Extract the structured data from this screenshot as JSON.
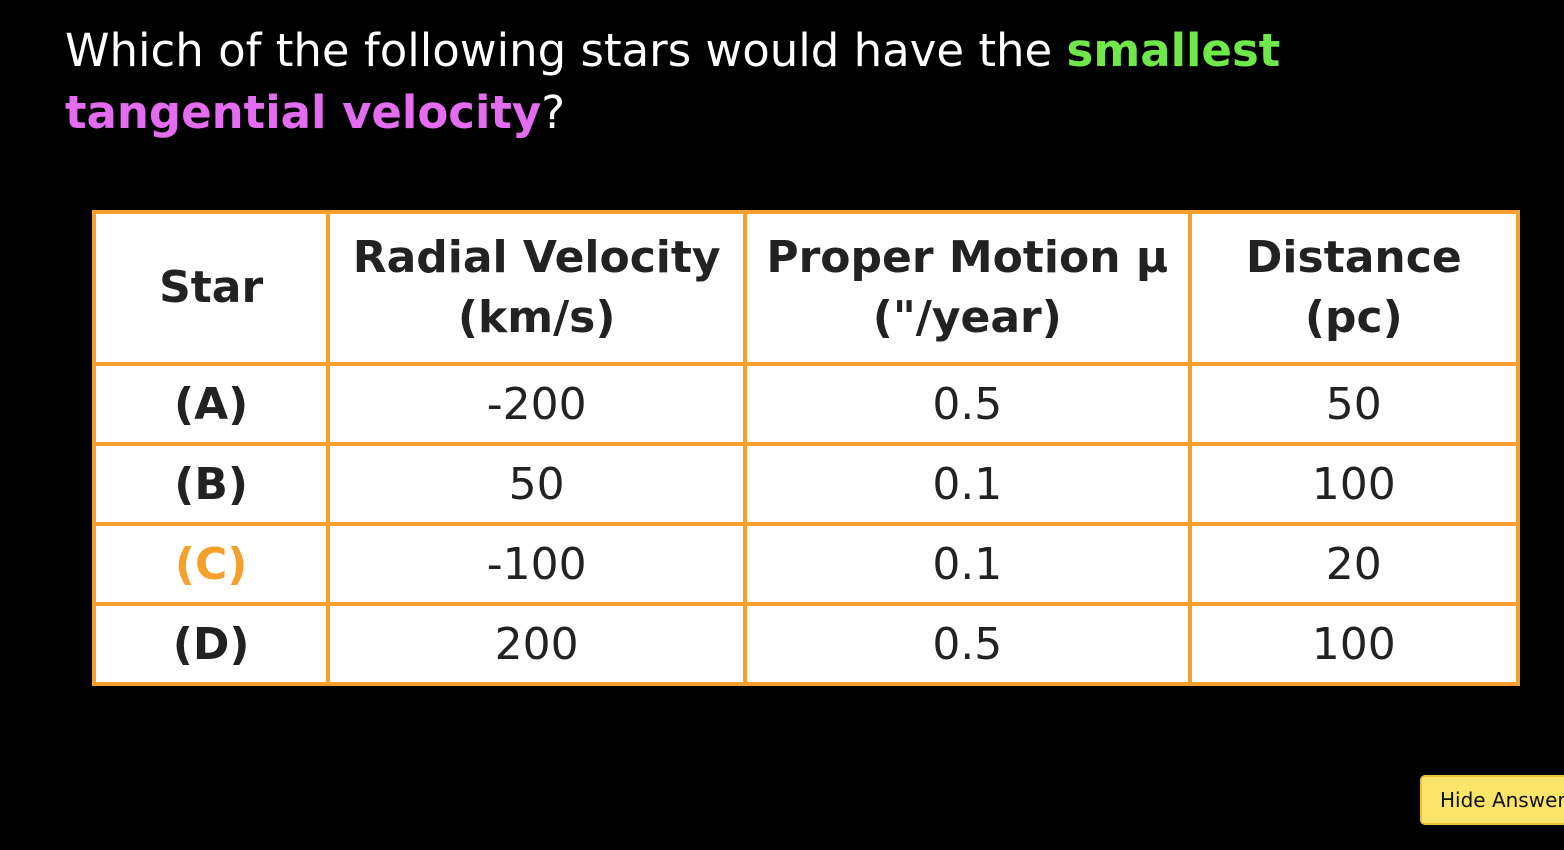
{
  "question": {
    "segments": [
      {
        "text": "Which of the following stars would have the ",
        "color": "#ffffff"
      },
      {
        "text": "smallest",
        "color": "#6fe84a"
      },
      {
        "text": " ",
        "color": "#ffffff"
      },
      {
        "text": "tangential velocity",
        "color": "#e46cf0"
      },
      {
        "text": "?",
        "color": "#ffffff"
      }
    ]
  },
  "table": {
    "header": [
      [
        "Star"
      ],
      [
        "Radial Velocity",
        "(km/s)"
      ],
      [
        "Proper Motion μ",
        "(\"/year)"
      ],
      [
        "Distance",
        "(pc)"
      ]
    ],
    "rows": [
      {
        "star": "(A)",
        "color": "#222222",
        "cells": [
          "-200",
          "0.5",
          "50"
        ]
      },
      {
        "star": "(B)",
        "color": "#222222",
        "cells": [
          "50",
          "0.1",
          "100"
        ]
      },
      {
        "star": "(C)",
        "color": "#f6a02c",
        "cells": [
          "-100",
          "0.1",
          "20"
        ]
      },
      {
        "star": "(D)",
        "color": "#222222",
        "cells": [
          "200",
          "0.5",
          "100"
        ]
      }
    ]
  },
  "button": {
    "label": "Hide Answer"
  }
}
